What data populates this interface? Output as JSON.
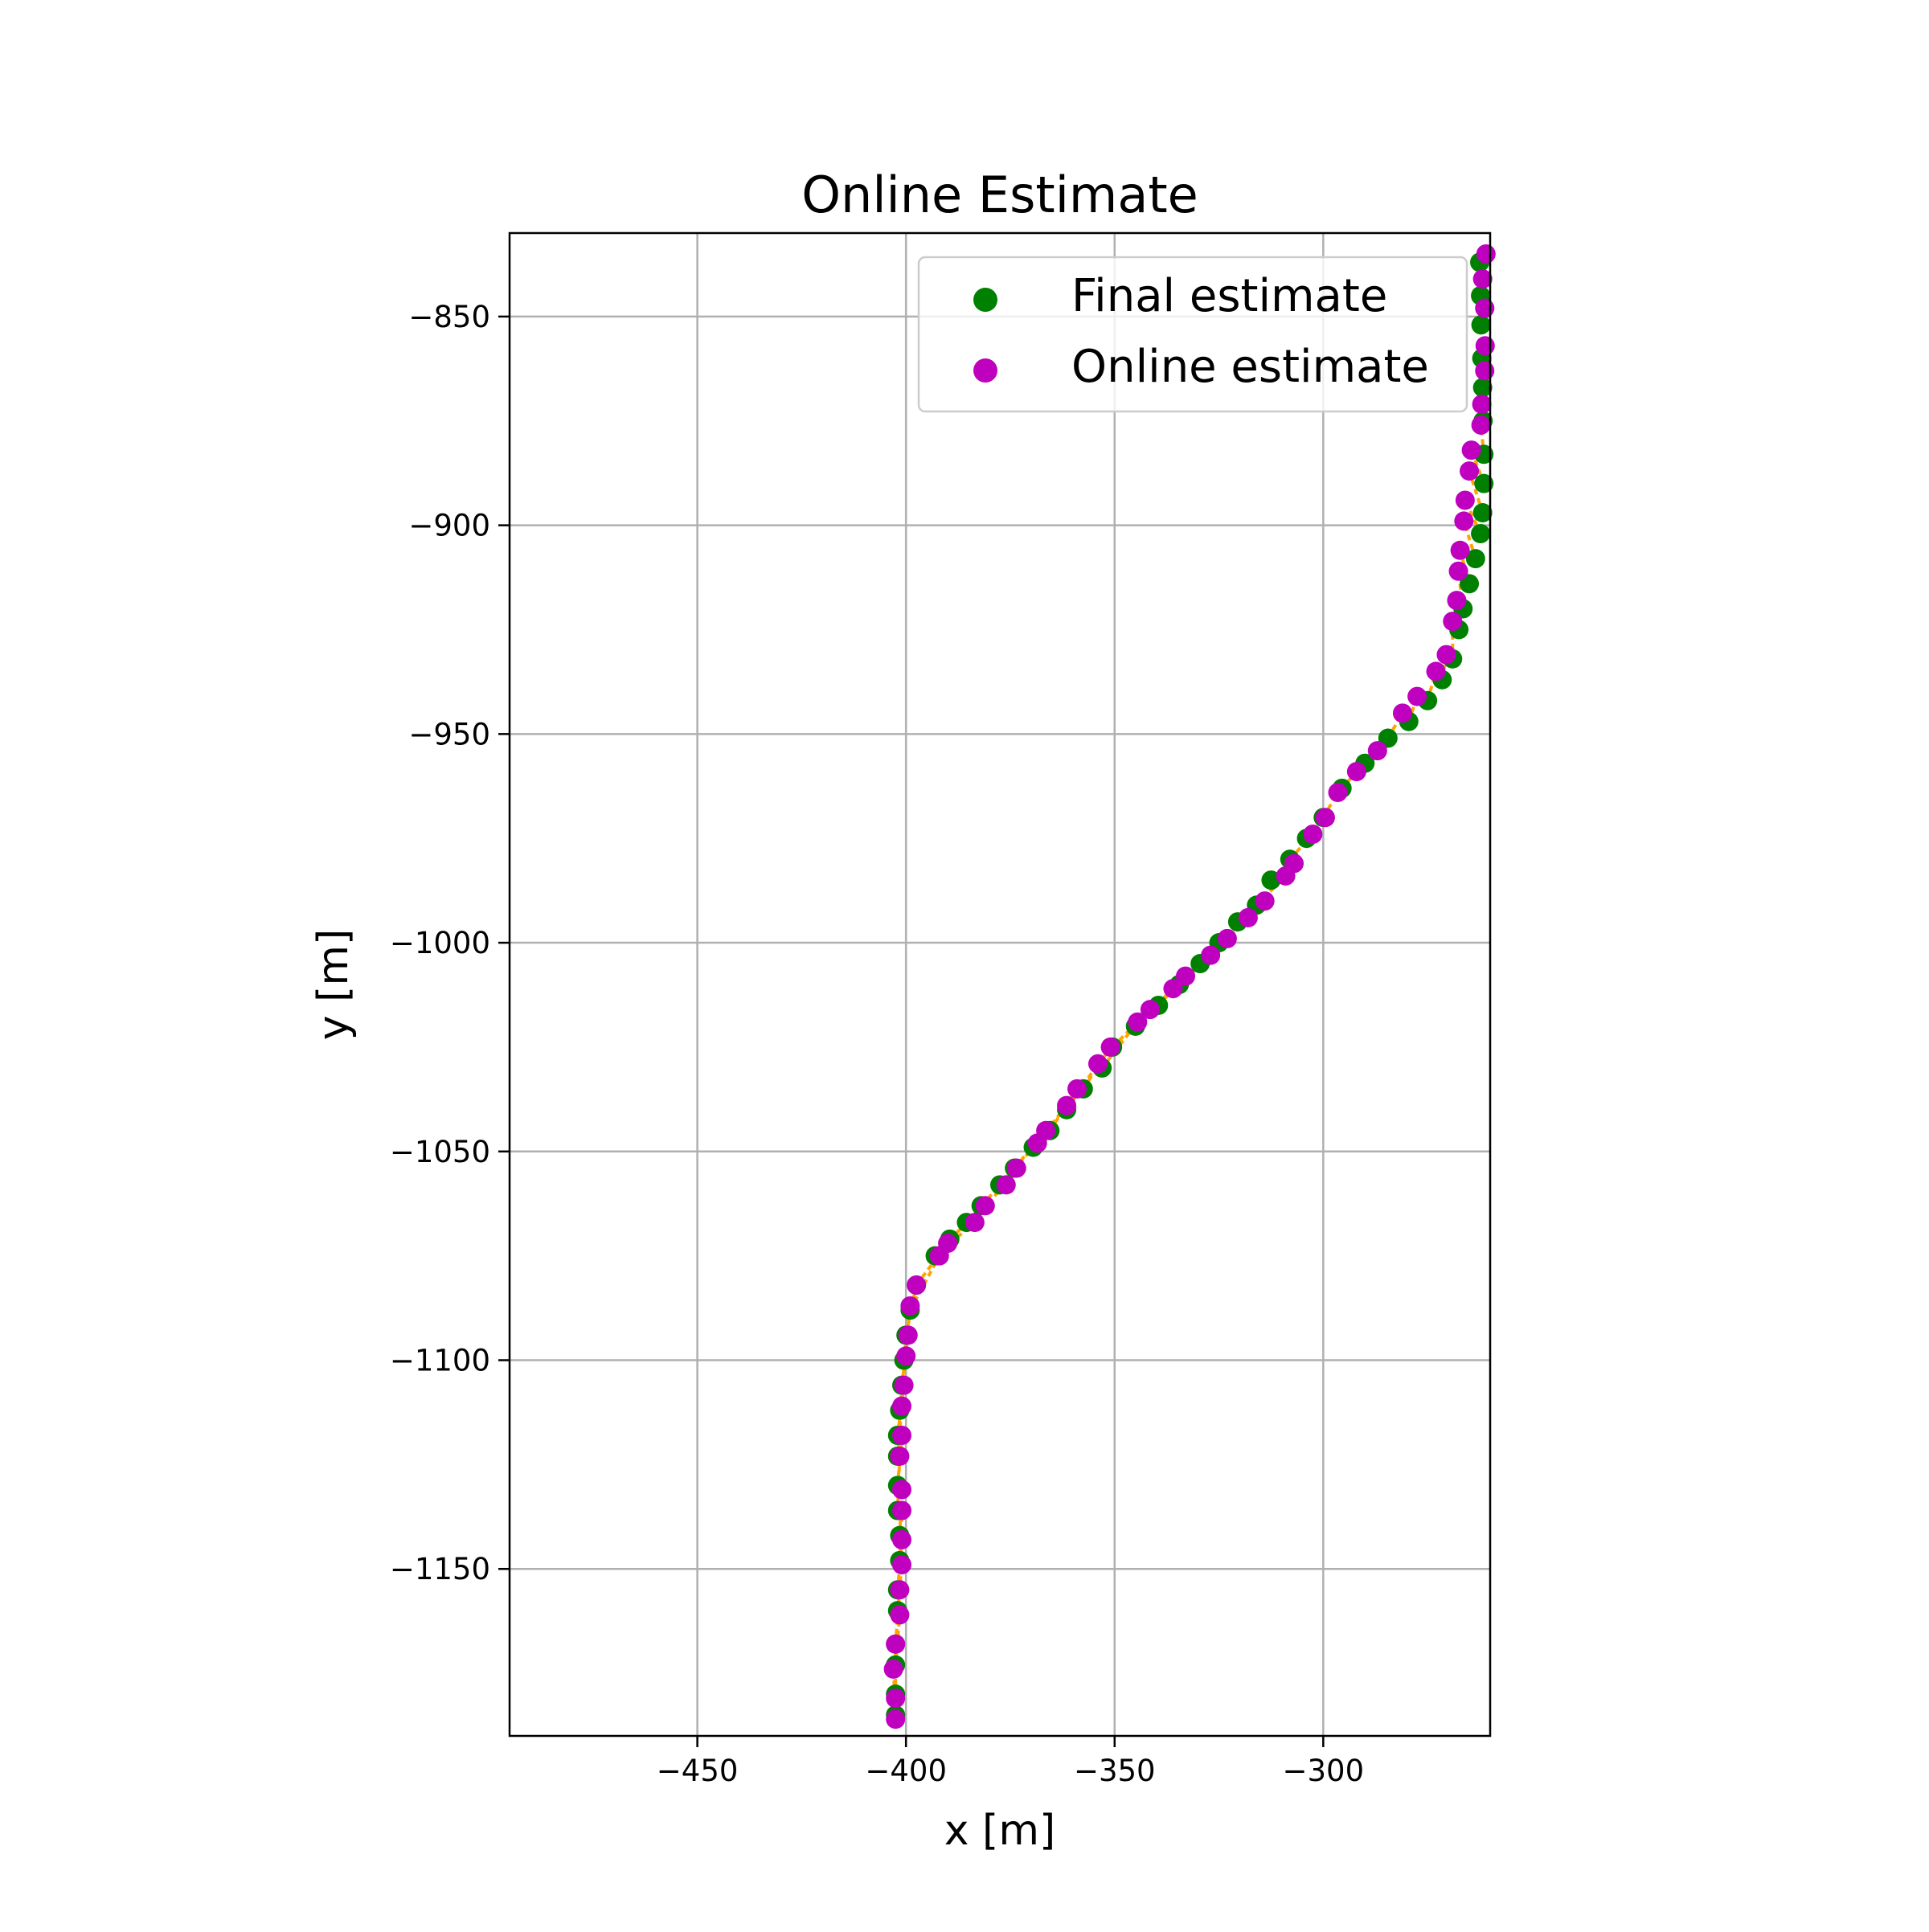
{
  "chart_data": {
    "type": "scatter",
    "title": "Online Estimate",
    "xlabel": "x [m]",
    "ylabel": "y [m]",
    "xlim": [
      -495,
      -260
    ],
    "ylim": [
      -1190,
      -830
    ],
    "xticks": [
      -450,
      -400,
      -350,
      -300
    ],
    "yticks": [
      -850,
      -900,
      -950,
      -1000,
      -1050,
      -1100,
      -1150
    ],
    "xtick_labels": [
      "−450",
      "−400",
      "−350",
      "−300"
    ],
    "ytick_labels": [
      "−850",
      "−900",
      "−950",
      "−1000",
      "−1050",
      "−1100",
      "−1150"
    ],
    "grid": true,
    "legend_position": "upper right",
    "colors": {
      "final": "#008000",
      "online": "#bf00bf",
      "connector": "#ffa500"
    },
    "series": [
      {
        "name": "Final estimate",
        "color": "#008000",
        "points": [
          [
            -262.5,
            -837
          ],
          [
            -262.3,
            -845
          ],
          [
            -262.2,
            -852
          ],
          [
            -262.0,
            -860
          ],
          [
            -261.8,
            -867
          ],
          [
            -261.7,
            -875
          ],
          [
            -261.5,
            -883
          ],
          [
            -261.5,
            -890
          ],
          [
            -261.8,
            -897
          ],
          [
            -262.3,
            -902
          ],
          [
            -263.5,
            -908
          ],
          [
            -265.0,
            -914
          ],
          [
            -266.5,
            -920
          ],
          [
            -267.5,
            -925
          ],
          [
            -269.0,
            -932
          ],
          [
            -271.5,
            -937
          ],
          [
            -275.0,
            -942
          ],
          [
            -279.5,
            -947
          ],
          [
            -284.5,
            -951
          ],
          [
            -290.0,
            -957
          ],
          [
            -295.5,
            -963
          ],
          [
            -300.0,
            -970
          ],
          [
            -304.0,
            -975
          ],
          [
            -308.0,
            -980
          ],
          [
            -312.5,
            -985
          ],
          [
            -316.0,
            -991
          ],
          [
            -320.5,
            -995
          ],
          [
            -325.0,
            -1000
          ],
          [
            -329.5,
            -1005
          ],
          [
            -334.5,
            -1010
          ],
          [
            -339.5,
            -1015
          ],
          [
            -345.0,
            -1020
          ],
          [
            -350.5,
            -1025
          ],
          [
            -353.0,
            -1030
          ],
          [
            -357.5,
            -1035
          ],
          [
            -361.5,
            -1040
          ],
          [
            -365.5,
            -1045
          ],
          [
            -369.5,
            -1049
          ],
          [
            -374.0,
            -1054
          ],
          [
            -377.5,
            -1058
          ],
          [
            -382.0,
            -1063
          ],
          [
            -385.5,
            -1067
          ],
          [
            -389.5,
            -1071
          ],
          [
            -393.0,
            -1075
          ],
          [
            -397.5,
            -1082
          ],
          [
            -399.0,
            -1088
          ],
          [
            -400.0,
            -1094
          ],
          [
            -400.5,
            -1100
          ],
          [
            -401.0,
            -1106
          ],
          [
            -401.5,
            -1112
          ],
          [
            -402.0,
            -1118
          ],
          [
            -402.0,
            -1123
          ],
          [
            -402.0,
            -1130
          ],
          [
            -402.0,
            -1136
          ],
          [
            -401.5,
            -1142
          ],
          [
            -401.5,
            -1148
          ],
          [
            -402.0,
            -1155
          ],
          [
            -402.0,
            -1160
          ],
          [
            -402.5,
            -1168
          ],
          [
            -402.5,
            -1173
          ],
          [
            -402.5,
            -1180
          ],
          [
            -402.5,
            -1185
          ]
        ]
      },
      {
        "name": "Online estimate",
        "color": "#bf00bf",
        "points": [
          [
            -261.0,
            -835
          ],
          [
            -261.8,
            -841
          ],
          [
            -261.3,
            -848
          ],
          [
            -261.2,
            -857
          ],
          [
            -261.3,
            -863
          ],
          [
            -262.0,
            -871
          ],
          [
            -262.2,
            -876
          ],
          [
            -264.5,
            -882
          ],
          [
            -265.0,
            -887
          ],
          [
            -266.0,
            -894
          ],
          [
            -266.3,
            -899
          ],
          [
            -267.2,
            -906
          ],
          [
            -267.6,
            -911
          ],
          [
            -268.0,
            -918
          ],
          [
            -269.0,
            -923
          ],
          [
            -270.5,
            -931
          ],
          [
            -273.0,
            -935
          ],
          [
            -277.5,
            -941
          ],
          [
            -281.0,
            -945
          ],
          [
            -287.0,
            -954
          ],
          [
            -292.0,
            -959
          ],
          [
            -296.5,
            -964
          ],
          [
            -299.5,
            -970
          ],
          [
            -302.5,
            -974
          ],
          [
            -307.0,
            -981
          ],
          [
            -309.0,
            -984
          ],
          [
            -314.0,
            -990
          ],
          [
            -318.0,
            -994
          ],
          [
            -323.0,
            -999
          ],
          [
            -327.0,
            -1003
          ],
          [
            -333.0,
            -1008
          ],
          [
            -336.0,
            -1011
          ],
          [
            -341.5,
            -1016
          ],
          [
            -344.5,
            -1019
          ],
          [
            -351.0,
            -1025
          ],
          [
            -354.0,
            -1029
          ],
          [
            -359.0,
            -1035
          ],
          [
            -361.5,
            -1039
          ],
          [
            -366.5,
            -1045
          ],
          [
            -368.5,
            -1048
          ],
          [
            -373.5,
            -1054
          ],
          [
            -376.0,
            -1058
          ],
          [
            -381.0,
            -1063
          ],
          [
            -383.5,
            -1067
          ],
          [
            -390.0,
            -1072
          ],
          [
            -392.0,
            -1075
          ],
          [
            -397.5,
            -1082
          ],
          [
            -399.0,
            -1087
          ],
          [
            -399.5,
            -1094
          ],
          [
            -400.0,
            -1099
          ],
          [
            -400.5,
            -1106
          ],
          [
            -401.0,
            -1111
          ],
          [
            -401.0,
            -1118
          ],
          [
            -401.5,
            -1123
          ],
          [
            -401.0,
            -1131
          ],
          [
            -401.0,
            -1136
          ],
          [
            -401.0,
            -1143
          ],
          [
            -401.0,
            -1149
          ],
          [
            -401.5,
            -1155
          ],
          [
            -401.5,
            -1161
          ],
          [
            -402.5,
            -1168
          ],
          [
            -403.0,
            -1174
          ],
          [
            -402.5,
            -1181
          ],
          [
            -402.5,
            -1186
          ]
        ]
      }
    ]
  }
}
